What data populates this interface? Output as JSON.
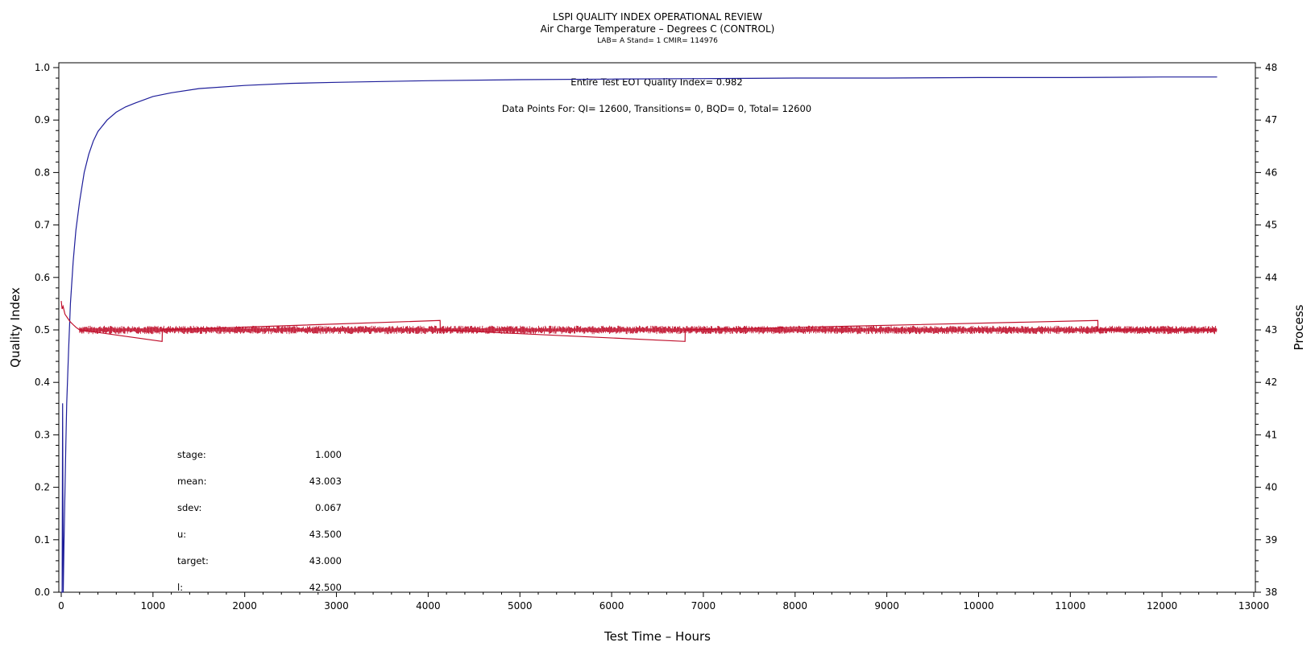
{
  "chart_data": {
    "type": "line",
    "title": "LSPI QUALITY INDEX OPERATIONAL REVIEW",
    "subtitle": "Air Charge Temperature – Degrees C (CONTROL)",
    "subtitle2": "LAB= A Stand= 1 CMIR= 114976",
    "xlabel": "Test Time – Hours",
    "ylabel": "Quality Index",
    "y2label": "Process",
    "xlim": [
      0,
      13000
    ],
    "ylim": [
      0.0,
      1.0
    ],
    "y2lim": [
      38,
      48
    ],
    "xticks": [
      "0",
      "1000",
      "2000",
      "3000",
      "4000",
      "5000",
      "6000",
      "7000",
      "8000",
      "9000",
      "10000",
      "11000",
      "12000",
      "13000"
    ],
    "yticks": [
      "0.0",
      "0.1",
      "0.2",
      "0.3",
      "0.4",
      "0.5",
      "0.6",
      "0.7",
      "0.8",
      "0.9",
      "1.0"
    ],
    "y2ticks": [
      "38",
      "39",
      "40",
      "41",
      "42",
      "43",
      "44",
      "45",
      "46",
      "47",
      "48"
    ],
    "grid": false,
    "annotations": {
      "eot": "Entire Test EOT Quality Index=   0.982",
      "points": "Data Points For: QI= 12600, Transitions=     0, BQD=     0, Total= 12600"
    },
    "stats": [
      {
        "label": "stage:",
        "value": "1.000"
      },
      {
        "label": "mean:",
        "value": "43.003"
      },
      {
        "label": "sdev:",
        "value": "0.067"
      },
      {
        "label": "u:",
        "value": "43.500"
      },
      {
        "label": "target:",
        "value": "43.000"
      },
      {
        "label": "l:",
        "value": "42.500"
      }
    ],
    "series": [
      {
        "axis": "left",
        "color": "#1e1e9a",
        "x": [
          0,
          10,
          15,
          22,
          30,
          40,
          50,
          60,
          80,
          100,
          130,
          160,
          200,
          250,
          300,
          350,
          400,
          500,
          600,
          700,
          800,
          1000,
          1200,
          1500,
          2000,
          2500,
          3000,
          4000,
          5000,
          6000,
          7000,
          8000,
          9000,
          10000,
          11000,
          12000,
          12600
        ],
        "values": [
          0.0,
          0.0,
          0.36,
          0.0,
          0.09,
          0.19,
          0.28,
          0.36,
          0.46,
          0.55,
          0.63,
          0.69,
          0.745,
          0.8,
          0.835,
          0.86,
          0.878,
          0.9,
          0.915,
          0.925,
          0.932,
          0.945,
          0.952,
          0.96,
          0.966,
          0.97,
          0.972,
          0.975,
          0.977,
          0.978,
          0.979,
          0.98,
          0.98,
          0.981,
          0.981,
          0.982,
          0.982
        ]
      },
      {
        "axis": "right",
        "color": "#c0102c",
        "x": [
          0,
          10,
          20,
          40,
          60,
          80,
          100,
          130,
          160,
          200,
          1100,
          1102,
          4130,
          4132,
          6800,
          6802,
          11300,
          11302,
          12600
        ],
        "values": [
          43.55,
          43.4,
          43.45,
          43.3,
          43.25,
          43.2,
          43.15,
          43.1,
          43.05,
          43.0,
          42.78,
          43.0,
          43.18,
          43.0,
          42.78,
          43.0,
          43.18,
          43.0,
          43.0
        ],
        "noise_band": [
          42.92,
          43.08
        ]
      }
    ]
  }
}
